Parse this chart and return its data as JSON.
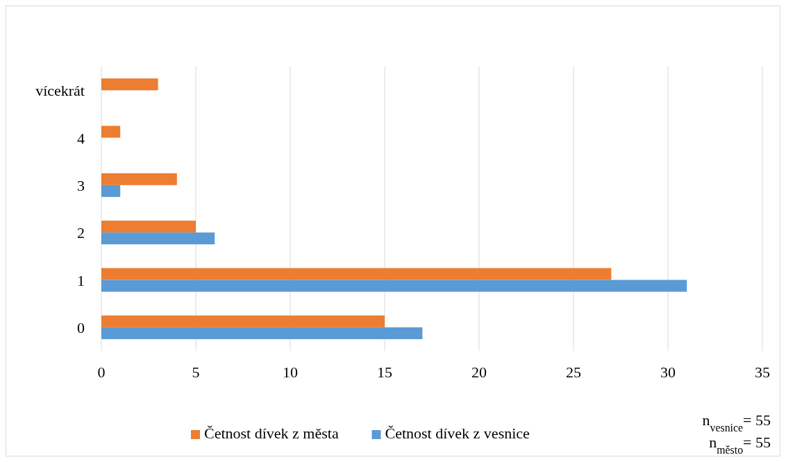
{
  "chart_data": {
    "type": "bar",
    "orientation": "horizontal",
    "categories": [
      "vícekrát",
      "4",
      "3",
      "2",
      "1",
      "0"
    ],
    "series": [
      {
        "name": "Četnost dívek z města",
        "color": "#ed7d31",
        "values": [
          3,
          1,
          4,
          5,
          27,
          15
        ]
      },
      {
        "name": "Četnost dívek z vesnice",
        "color": "#5b9bd5",
        "values": [
          null,
          null,
          1,
          6,
          31,
          17
        ]
      }
    ],
    "xlim": [
      0,
      35
    ],
    "xticks": [
      0,
      5,
      10,
      15,
      20,
      25,
      30,
      35
    ],
    "grid": "x",
    "legend": "bottom",
    "annotations": [
      "n$_{vesnice}$= 55",
      "n$_{město}$= 55"
    ]
  }
}
